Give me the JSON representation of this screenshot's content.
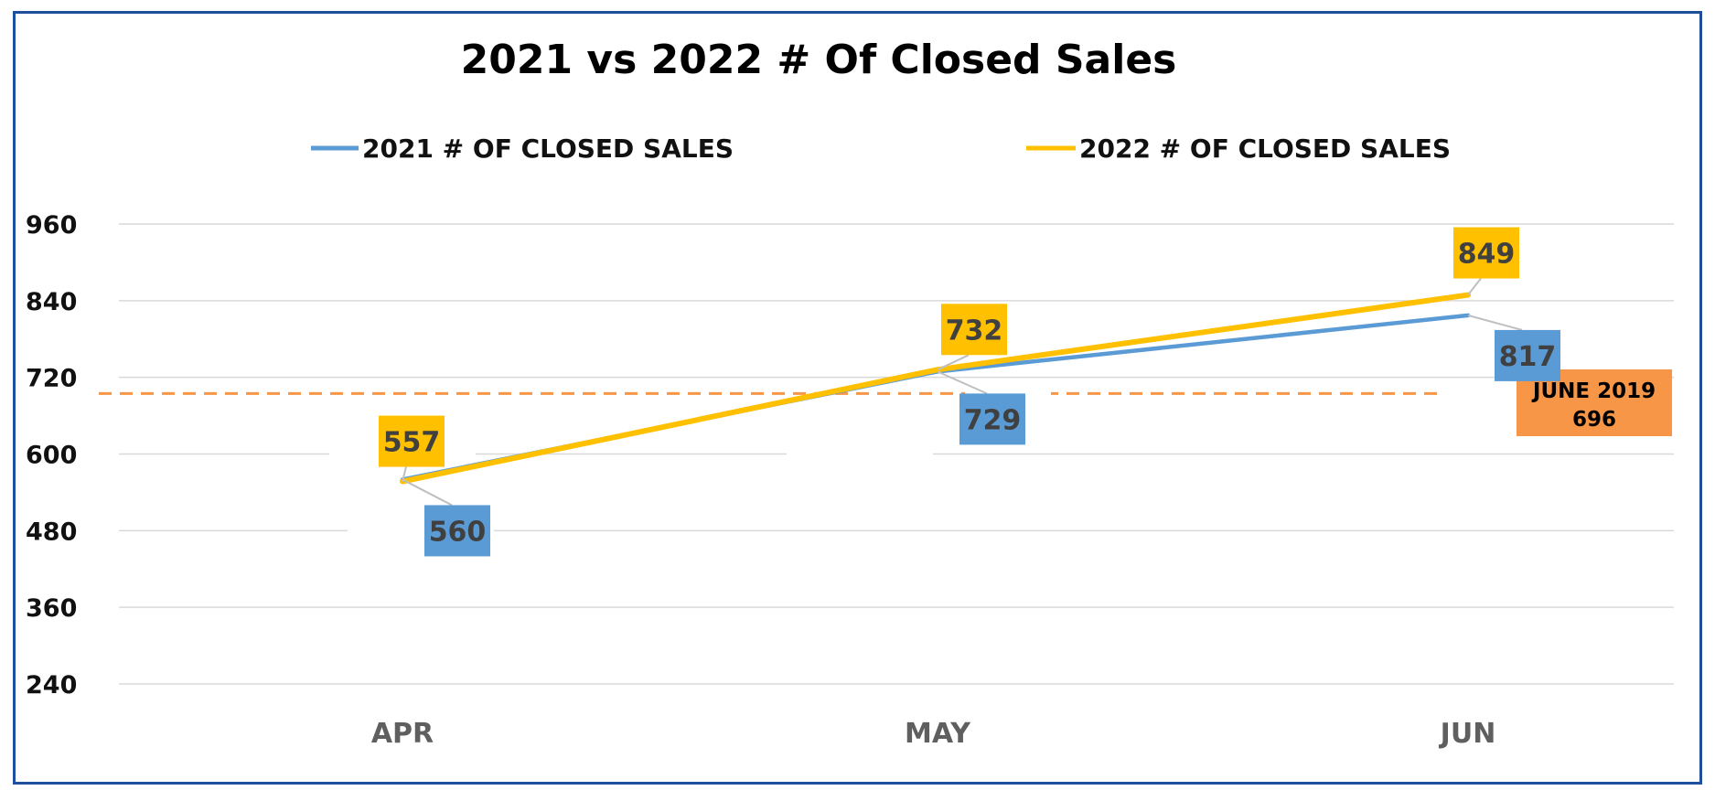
{
  "chart_data": {
    "type": "line",
    "title": "2021 vs 2022 # Of Closed Sales",
    "categories": [
      "APR",
      "MAY",
      "JUN"
    ],
    "series": [
      {
        "name": "2021 # OF CLOSED SALES",
        "values": [
          560,
          729,
          817
        ],
        "color": "#5b9bd5"
      },
      {
        "name": "2022 # OF CLOSED SALES",
        "values": [
          557,
          732,
          849
        ],
        "color": "#ffc000"
      }
    ],
    "ylim": [
      240,
      960
    ],
    "yticks": [
      240,
      360,
      480,
      600,
      720,
      840,
      960
    ],
    "grid": true,
    "legend_position": "top",
    "data_labels": true,
    "reference_line": {
      "value": 696,
      "label_line1": "JUNE 2019",
      "label_line2": "696",
      "color": "#f79646",
      "style": "dashed"
    }
  },
  "colors": {
    "frame_border": "#1f4e9c",
    "gridline": "#d9d9d9",
    "label_connector": "#bfbfbf"
  }
}
